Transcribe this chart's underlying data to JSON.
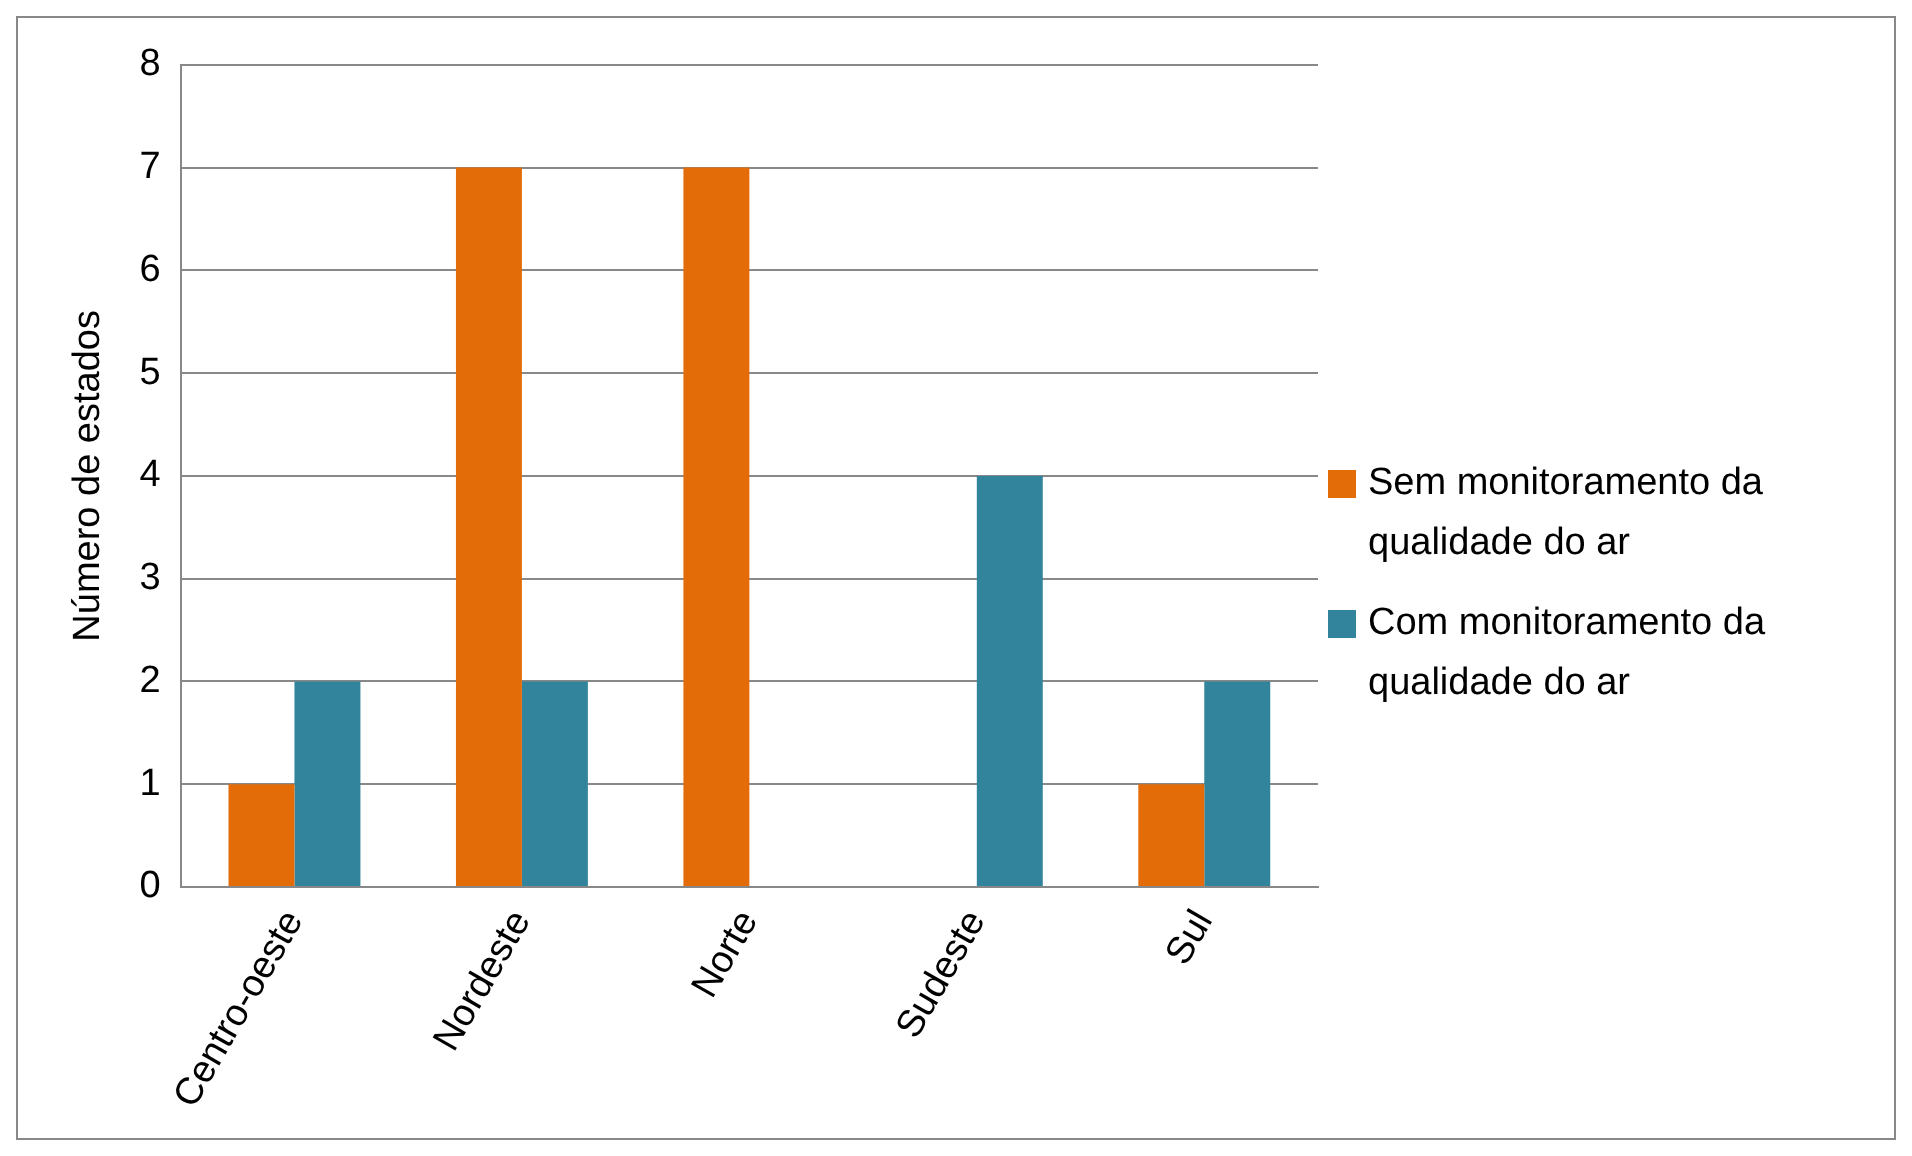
{
  "chart_data": {
    "type": "bar",
    "ylabel": "Número de estados",
    "categories": [
      "Centro-oeste",
      "Nordeste",
      "Norte",
      "Sudeste",
      "Sul"
    ],
    "series": [
      {
        "name": "Sem monitoramento da qualidade do ar",
        "color": "#e36c09",
        "values": [
          1,
          7,
          7,
          0,
          1
        ]
      },
      {
        "name": "Com monitoramento da qualidade do ar",
        "color": "#31849b",
        "values": [
          2,
          2,
          0,
          4,
          2
        ]
      }
    ],
    "ylim": [
      0,
      8
    ],
    "yticks": [
      0,
      1,
      2,
      3,
      4,
      5,
      6,
      7,
      8
    ],
    "grid": "y",
    "legend": "right"
  }
}
